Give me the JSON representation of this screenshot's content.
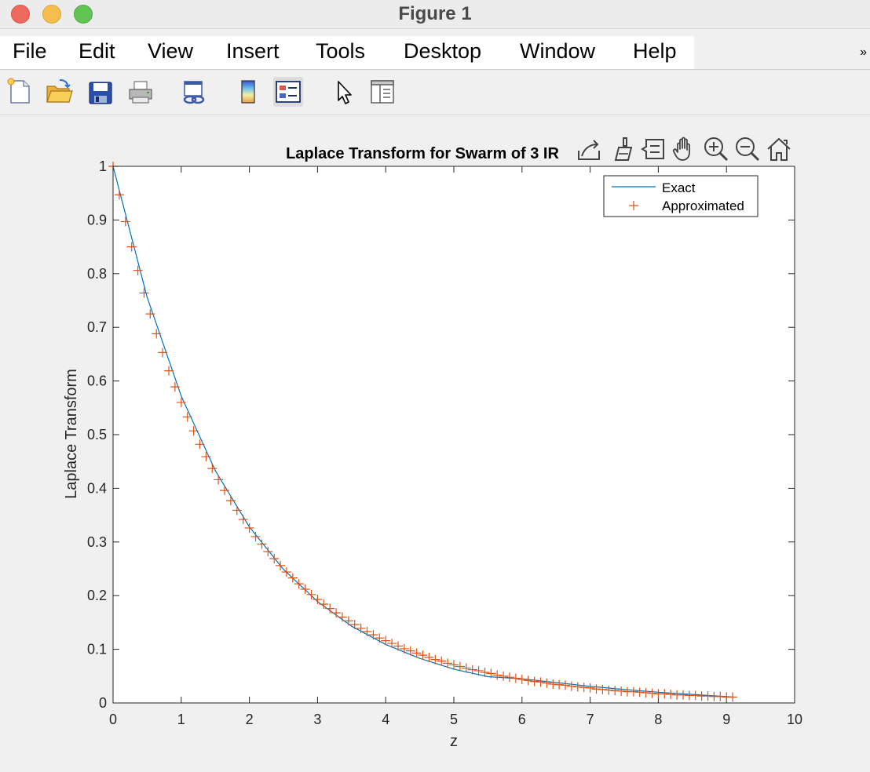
{
  "window": {
    "title": "Figure 1"
  },
  "menu": {
    "items": [
      "File",
      "Edit",
      "View",
      "Insert",
      "Tools",
      "Desktop",
      "Window",
      "Help"
    ],
    "overflow_label": "»"
  },
  "toolbar": {
    "buttons": [
      "new-figure",
      "open-file",
      "save",
      "print",
      "link-plot",
      "insert-colorbar",
      "insert-legend",
      "edit-plot",
      "property-inspector"
    ]
  },
  "axes_toolbar": {
    "buttons": [
      "export",
      "brush",
      "data-tips",
      "pan",
      "zoom-in",
      "zoom-out",
      "restore-view"
    ]
  },
  "colors": {
    "exact_line": "#0072bd",
    "approx_marker": "#d95319",
    "axes_bg": "#ffffff",
    "figure_bg": "#f0f0f0"
  },
  "chart_data": {
    "type": "line",
    "title": "Laplace Transform for Swarm of 3 IR",
    "xlabel": "z",
    "ylabel": "Laplace Transform",
    "xlim": [
      0,
      10
    ],
    "ylim": [
      0,
      1
    ],
    "xticks": [
      "0",
      "1",
      "2",
      "3",
      "4",
      "5",
      "6",
      "7",
      "8",
      "9",
      "10"
    ],
    "yticks": [
      "0",
      "0.1",
      "0.2",
      "0.3",
      "0.4",
      "0.5",
      "0.6",
      "0.7",
      "0.8",
      "0.9",
      "1"
    ],
    "grid": false,
    "legend": "top-right",
    "series": [
      {
        "name": "Exact",
        "style": "solid-line",
        "x": [
          0,
          0.5,
          1.0,
          1.5,
          2.0,
          2.5,
          3.0,
          3.5,
          4.0,
          4.5,
          5.0,
          5.5,
          6.0,
          6.5,
          7.0,
          7.5,
          8.0,
          8.5,
          9.0,
          9.1
        ],
        "y": [
          1.0,
          0.756,
          0.572,
          0.433,
          0.328,
          0.249,
          0.189,
          0.143,
          0.109,
          0.083,
          0.063,
          0.049,
          0.045,
          0.038,
          0.031,
          0.025,
          0.02,
          0.016,
          0.012,
          0.011
        ]
      },
      {
        "name": "Approximated",
        "style": "plus-markers",
        "x": [
          0.0,
          0.091,
          0.182,
          0.273,
          0.364,
          0.455,
          0.545,
          0.636,
          0.727,
          0.818,
          0.909,
          1.0,
          1.091,
          1.182,
          1.273,
          1.364,
          1.455,
          1.545,
          1.636,
          1.727,
          1.818,
          1.909,
          2.0,
          2.091,
          2.182,
          2.273,
          2.364,
          2.455,
          2.545,
          2.636,
          2.727,
          2.818,
          2.909,
          3.0,
          3.091,
          3.182,
          3.273,
          3.364,
          3.455,
          3.545,
          3.636,
          3.727,
          3.818,
          3.909,
          4.0,
          4.091,
          4.182,
          4.273,
          4.364,
          4.455,
          4.545,
          4.636,
          4.727,
          4.818,
          4.909,
          5.0,
          5.091,
          5.182,
          5.273,
          5.364,
          5.455,
          5.545,
          5.636,
          5.727,
          5.818,
          5.909,
          6.0,
          6.091,
          6.182,
          6.273,
          6.364,
          6.455,
          6.545,
          6.636,
          6.727,
          6.818,
          6.909,
          7.0,
          7.091,
          7.182,
          7.273,
          7.364,
          7.455,
          7.545,
          7.636,
          7.727,
          7.818,
          7.909,
          8.0,
          8.091,
          8.182,
          8.273,
          8.364,
          8.455,
          8.545,
          8.636,
          8.727,
          8.818,
          8.909,
          9.0,
          9.091
        ],
        "y": [
          1.0,
          0.947,
          0.897,
          0.85,
          0.806,
          0.764,
          0.725,
          0.688,
          0.653,
          0.619,
          0.589,
          0.56,
          0.533,
          0.507,
          0.482,
          0.459,
          0.437,
          0.416,
          0.396,
          0.377,
          0.359,
          0.342,
          0.326,
          0.31,
          0.296,
          0.282,
          0.269,
          0.256,
          0.244,
          0.233,
          0.222,
          0.212,
          0.202,
          0.193,
          0.184,
          0.176,
          0.168,
          0.16,
          0.153,
          0.146,
          0.139,
          0.133,
          0.127,
          0.121,
          0.116,
          0.111,
          0.106,
          0.101,
          0.097,
          0.093,
          0.089,
          0.085,
          0.081,
          0.078,
          0.074,
          0.071,
          0.068,
          0.065,
          0.062,
          0.06,
          0.057,
          0.055,
          0.052,
          0.05,
          0.048,
          0.046,
          0.044,
          0.042,
          0.04,
          0.039,
          0.037,
          0.035,
          0.034,
          0.033,
          0.031,
          0.03,
          0.029,
          0.028,
          0.026,
          0.025,
          0.024,
          0.023,
          0.022,
          0.021,
          0.021,
          0.02,
          0.019,
          0.018,
          0.017,
          0.017,
          0.016,
          0.015,
          0.015,
          0.014,
          0.014,
          0.013,
          0.013,
          0.012,
          0.012,
          0.011,
          0.011
        ]
      }
    ]
  }
}
